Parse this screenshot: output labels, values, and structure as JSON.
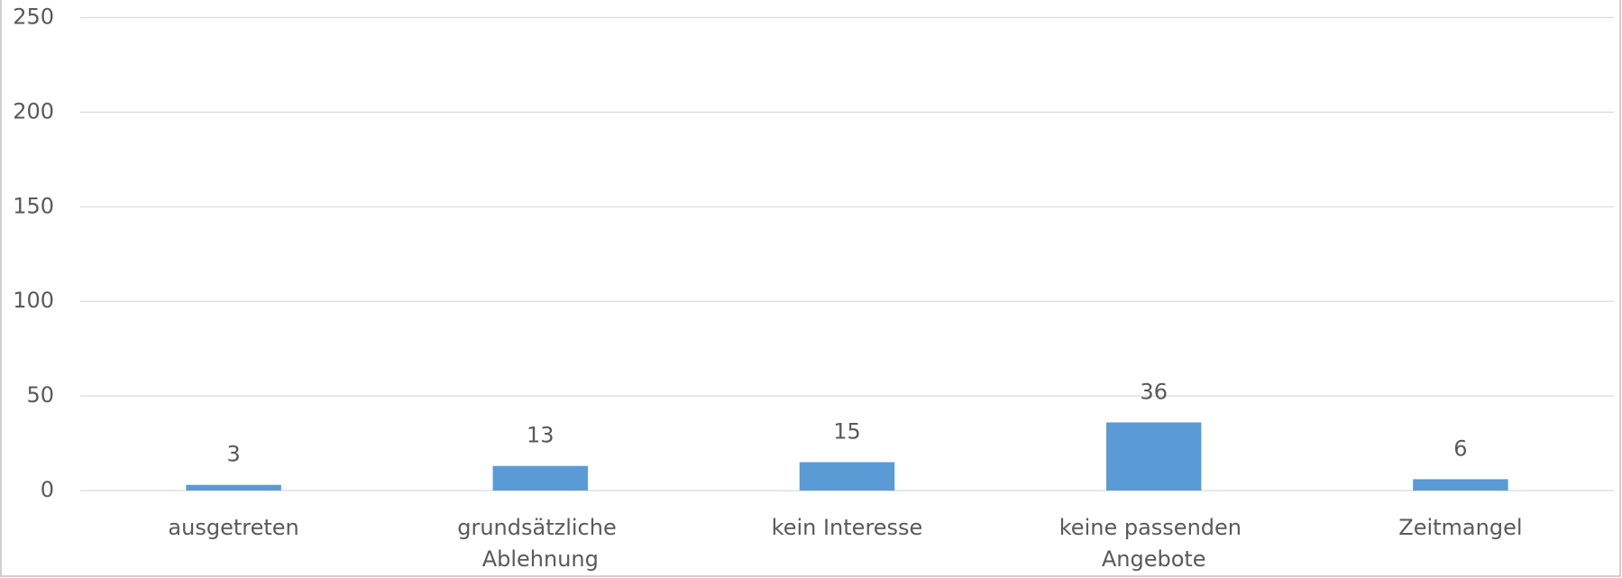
{
  "chart_data": {
    "type": "bar",
    "categories": [
      "ausgetreten",
      "grundsätzliche Ablehnung",
      "kein Interesse",
      "keine passenden Angebote",
      "Zeitmangel"
    ],
    "values": [
      3,
      13,
      15,
      36,
      6
    ],
    "color": "#5b9bd5",
    "ylim": [
      0,
      250
    ],
    "yticks": [
      0,
      50,
      100,
      150,
      200,
      250
    ],
    "grid": true
  }
}
